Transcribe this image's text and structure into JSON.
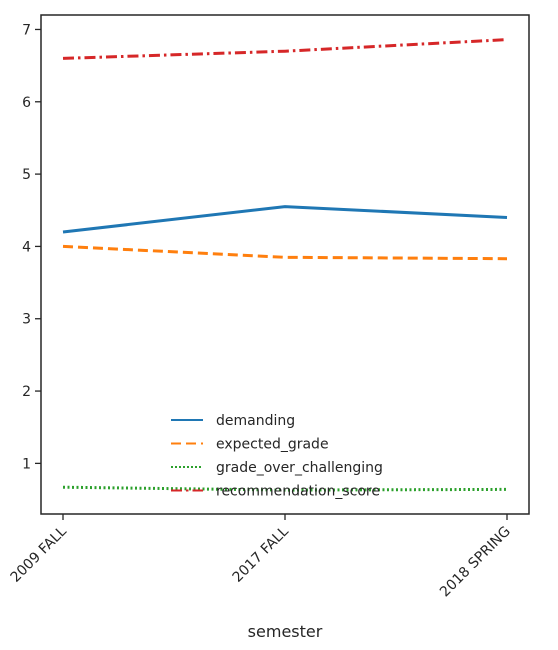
{
  "chart_data": {
    "type": "line",
    "categories": [
      "2009 FALL",
      "2017 FALL",
      "2018 SPRING"
    ],
    "xlabel": "semester",
    "ylabel": "",
    "ylim": [
      0.3,
      7.2
    ],
    "yticks": [
      1,
      2,
      3,
      4,
      5,
      6,
      7
    ],
    "grid": false,
    "legend_position": "lower-center",
    "series": [
      {
        "name": "demanding",
        "values": [
          4.2,
          4.55,
          4.4
        ],
        "color": "#1f77b4",
        "style": "solid"
      },
      {
        "name": "expected_grade",
        "values": [
          4.0,
          3.85,
          3.83
        ],
        "color": "#ff7f0e",
        "style": "dashed"
      },
      {
        "name": "grade_over_challenging",
        "values": [
          0.67,
          0.63,
          0.64
        ],
        "color": "#2ca02c",
        "style": "dotted"
      },
      {
        "name": "recommendation_score",
        "values": [
          6.6,
          6.7,
          6.86
        ],
        "color": "#d62728",
        "style": "dashdot"
      }
    ]
  }
}
